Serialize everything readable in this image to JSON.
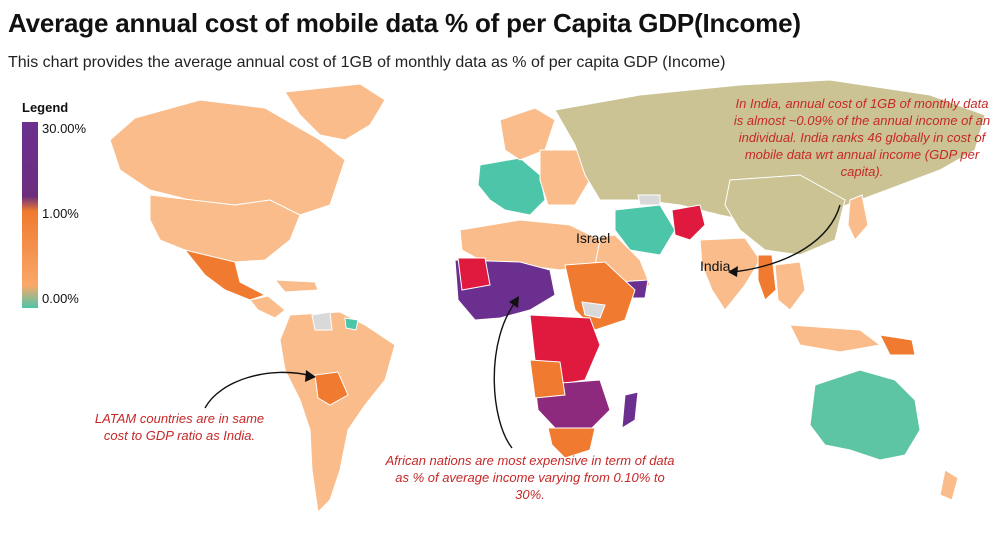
{
  "title": "Average annual cost of mobile data % of per Capita GDP(Income)",
  "subtitle": "This chart provides the average annual cost of 1GB of monthly data as % of per capita GDP (Income)",
  "legend": {
    "title": "Legend",
    "ticks": [
      "30.00%",
      "1.00%",
      "0.00%"
    ]
  },
  "labels": {
    "israel": "Israel",
    "india": "India"
  },
  "annotations": {
    "india_note": "In India, annual cost of 1GB of monthly data is almost ~0.09% of the annual income of an individual. India ranks 46 globally in cost of mobile data wrt annual income (GDP per capita).",
    "latam_note": "LATAM countries are in same cost to GDP ratio as India.",
    "africa_note": "African nations are most expensive in term of data as % of average income varying from 0.10% to 30%."
  },
  "colors": {
    "low": "#4cc5a8",
    "mid_low": "#f9bc8a",
    "mid": "#f07a2f",
    "high": "#e0193f",
    "very_high": "#6b2f8f",
    "no_data": "#d9d9d9",
    "russia_asia": "#cbc393",
    "annotation": "#c62828"
  }
}
